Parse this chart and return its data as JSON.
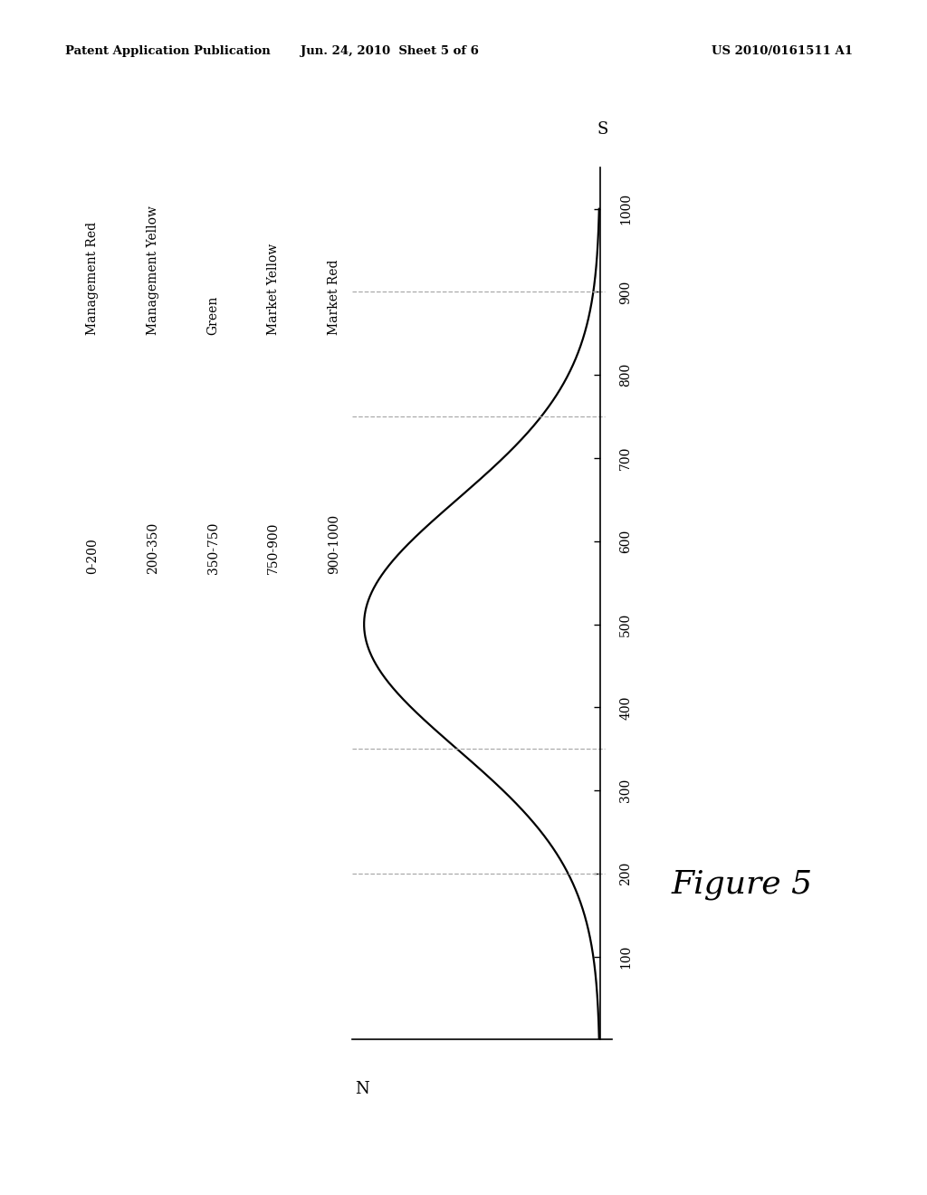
{
  "header_left": "Patent Application Publication",
  "header_mid": "Jun. 24, 2010  Sheet 5 of 6",
  "header_right": "US 2010/0161511 A1",
  "figure_label": "Figure 5",
  "s_label": "S",
  "n_label": "N",
  "y_ticks": [
    100,
    200,
    300,
    400,
    500,
    600,
    700,
    800,
    900,
    1000
  ],
  "dashed_lines": [
    200,
    350,
    750,
    900
  ],
  "legend_ranges": [
    "0-200",
    "200-350",
    "350-750",
    "750-900",
    "900-1000"
  ],
  "legend_labels": [
    "Management Red",
    "Management Yellow",
    "Green",
    "Market Yellow",
    "Market Red"
  ],
  "background_color": "#ffffff",
  "curve_color": "#000000",
  "dashed_color": "#aaaaaa",
  "text_color": "#000000",
  "bell_mean": 500,
  "bell_std": 150
}
